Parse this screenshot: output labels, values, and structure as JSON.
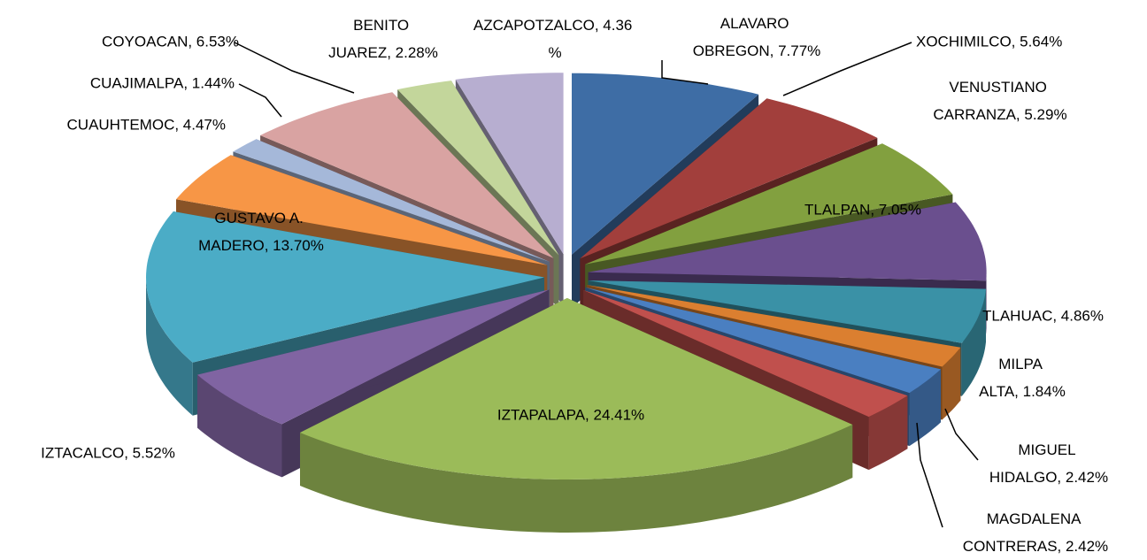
{
  "chart_data": {
    "type": "pie",
    "value_labels": [
      "ALAVARO OBREGON, 7.77%",
      "XOCHIMILCO, 5.64%",
      "VENUSTIANO CARRANZA, 5.29%",
      "TLALPAN, 7.05%",
      "TLAHUAC, 4.86%",
      "MILPA ALTA, 1.84%",
      "MIGUEL HIDALGO, 2.42%",
      "MAGDALENA CONTRERAS, 2.42%",
      "IZTAPALAPA, 24.41%",
      "IZTACALCO, 5.52%",
      "GUSTAVO A. MADERO, 13.70%",
      "CUAUHTEMOC, 4.47%",
      "CUAJIMALPA, 1.44%",
      "COYOACAN, 6.53%",
      "BENITO JUAREZ, 2.28%",
      "AZCAPOTZALCO, 4.36 %"
    ],
    "values": [
      7.77,
      5.64,
      5.29,
      7.05,
      4.86,
      1.84,
      2.42,
      2.42,
      24.41,
      5.52,
      13.7,
      4.47,
      1.44,
      6.53,
      2.28,
      4.36
    ],
    "colors": [
      "#3e6da5",
      "#a23f3c",
      "#82a03f",
      "#6a4f8e",
      "#3a91a6",
      "#db7f30",
      "#4a7fc1",
      "#c0504d",
      "#9bbb59",
      "#8064a2",
      "#4bacc6",
      "#f79646",
      "#a5b8d9",
      "#d9a3a2",
      "#c3d69b",
      "#b7aed0"
    ]
  }
}
